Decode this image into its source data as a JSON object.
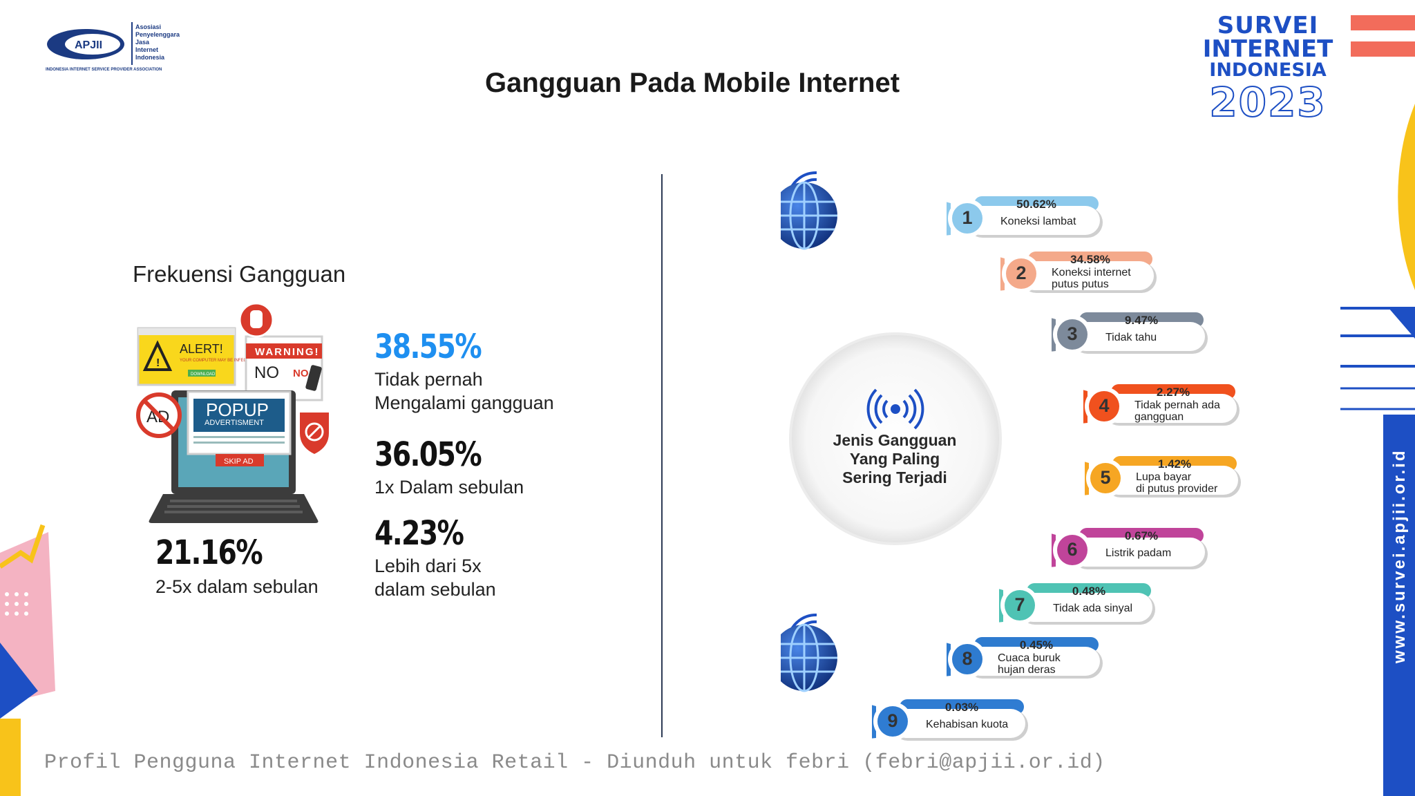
{
  "header": {
    "title": "Gangguan Pada Mobile Internet",
    "logo": {
      "mark": "APJII",
      "lines": [
        "Asosiasi",
        "Penyelenggara",
        "Jasa",
        "Internet",
        "Indonesia"
      ],
      "footer": "INDONESIA INTERNET SERVICE PROVIDER ASSOCIATION"
    },
    "badge": {
      "line1": "SURVEI",
      "line2": "INTERNET",
      "line3": "INDONESIA",
      "year": "2023"
    }
  },
  "frequency": {
    "title": "Frekuensi Gangguan",
    "illustration": {
      "alert": "ALERT!",
      "alert_sub": "YOUR COMPUTER MAY BE INFECTED",
      "download": "DOWNLOAD",
      "warning": "WARNING!",
      "no": "NO",
      "popup": "POPUP",
      "advert": "ADVERTISMENT",
      "skip": "SKIP AD",
      "ad": "AD"
    },
    "stats": [
      {
        "pct": "38.55%",
        "label_lines": [
          "Tidak pernah",
          "Mengalami gangguan"
        ],
        "color": "#1e8ff0"
      },
      {
        "pct": "36.05%",
        "label_lines": [
          "1x Dalam sebulan"
        ],
        "color": "#111111"
      },
      {
        "pct": "4.23%",
        "label_lines": [
          "Lebih dari 5x",
          "dalam sebulan"
        ],
        "color": "#111111"
      },
      {
        "pct": "21.16%",
        "label_lines": [
          "2-5x dalam sebulan"
        ],
        "color": "#111111"
      }
    ]
  },
  "types": {
    "center_lines": [
      "Jenis Gangguan",
      "Yang Paling",
      "Sering Terjadi"
    ],
    "items": [
      {
        "num": "1",
        "pct": "50.62%",
        "label_lines": [
          "Koneksi lambat"
        ],
        "color": "#8cc9ec"
      },
      {
        "num": "2",
        "pct": "34.58%",
        "label_lines": [
          "Koneksi internet",
          "putus putus"
        ],
        "color": "#f4a98a"
      },
      {
        "num": "3",
        "pct": "9.47%",
        "label_lines": [
          "Tidak tahu"
        ],
        "color": "#7d8a9b"
      },
      {
        "num": "4",
        "pct": "2.27%",
        "label_lines": [
          "Tidak pernah ada",
          "gangguan"
        ],
        "color": "#f0511e"
      },
      {
        "num": "5",
        "pct": "1.42%",
        "label_lines": [
          "Lupa bayar",
          "di putus provider"
        ],
        "color": "#f6a623"
      },
      {
        "num": "6",
        "pct": "0.67%",
        "label_lines": [
          "Listrik padam"
        ],
        "color": "#c0449a"
      },
      {
        "num": "7",
        "pct": "0.48%",
        "label_lines": [
          "Tidak ada sinyal"
        ],
        "color": "#4fc3b4"
      },
      {
        "num": "8",
        "pct": "0.45%",
        "label_lines": [
          "Cuaca buruk",
          "hujan deras"
        ],
        "color": "#2e7bcf"
      },
      {
        "num": "9",
        "pct": "0.03%",
        "label_lines": [
          "Kehabisan kuota"
        ],
        "color": "#2f7cd2"
      }
    ]
  },
  "footer": {
    "watermark": "Profil Pengguna Internet Indonesia Retail - Diunduh untuk febri (febri@apjii.or.id)",
    "side_url": "www.survei.apjii.or.id"
  }
}
